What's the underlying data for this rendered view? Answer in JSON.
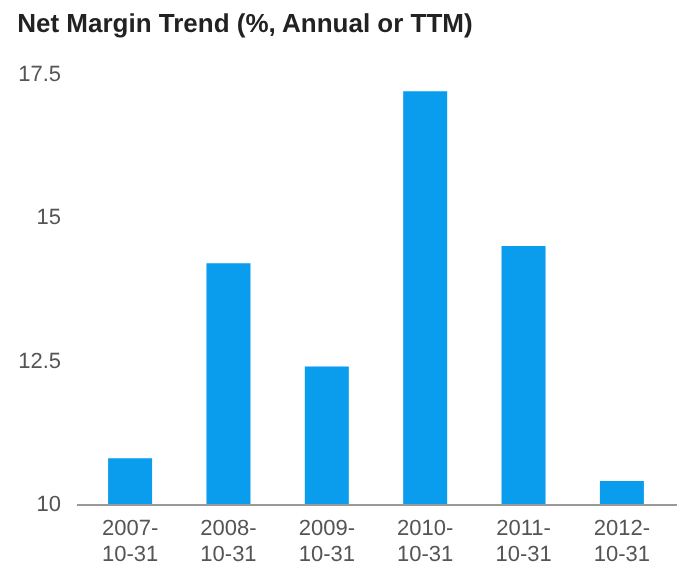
{
  "chart_data": {
    "type": "bar",
    "title": "Net Margin Trend (%, Annual or TTM)",
    "categories": [
      "2007-10-31",
      "2008-10-31",
      "2009-10-31",
      "2010-10-31",
      "2011-10-31",
      "2012-10-31"
    ],
    "series": [
      {
        "color": "#0a9ced",
        "values": [
          10.8,
          14.2,
          12.4,
          17.2,
          14.5,
          10.4
        ]
      }
    ],
    "ylim": [
      10,
      17.5
    ],
    "yticks": [
      10,
      12.5,
      15,
      17.5
    ],
    "grid": false,
    "legend": false
  }
}
